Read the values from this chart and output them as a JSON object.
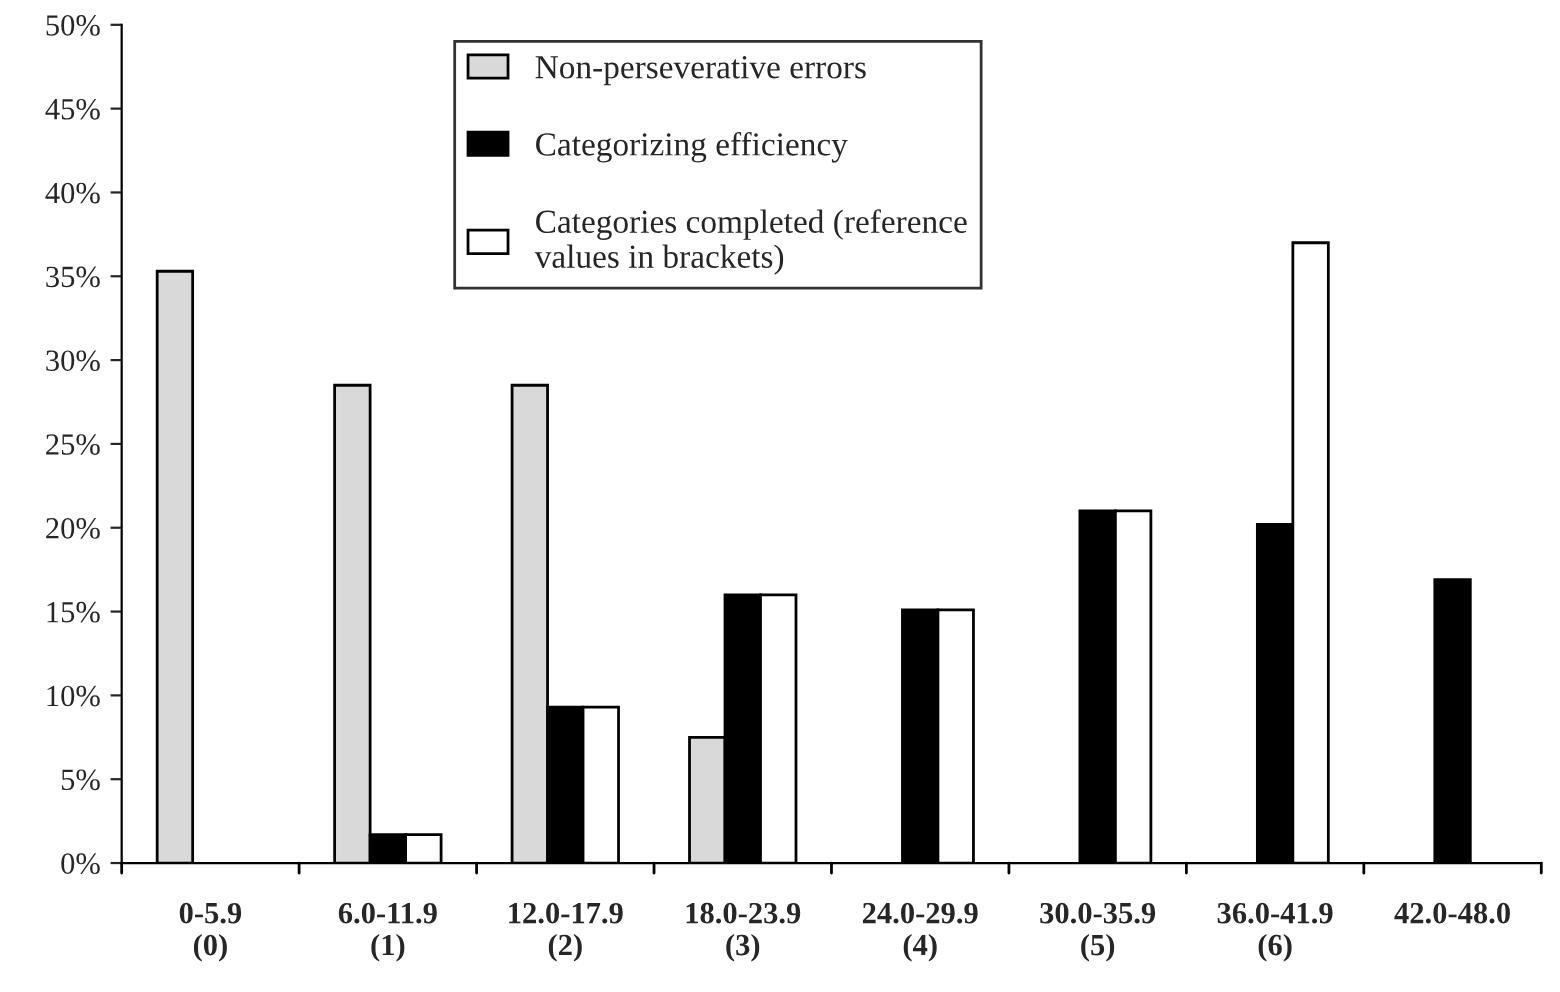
{
  "chart_data": {
    "type": "bar",
    "categories": [
      "0-5.9\n(0)",
      "6.0-11.9\n(1)",
      "12.0-17.9\n(2)",
      "18.0-23.9\n(3)",
      "24.0-29.9\n(4)",
      "30.0-35.9\n(5)",
      "36.0-41.9\n(6)",
      "42.0-48.0"
    ],
    "series": [
      {
        "name": "Non-perseverative errors",
        "color": "#d9d9d9",
        "values": [
          35.3,
          28.5,
          28.5,
          7.5,
          null,
          null,
          null,
          null
        ]
      },
      {
        "name": "Categorizing efficiency",
        "color": "#000000",
        "values": [
          null,
          1.7,
          9.3,
          16.0,
          15.1,
          21.0,
          20.2,
          16.9
        ]
      },
      {
        "name": "Categories completed (reference\nvalues in brackets)",
        "color": "#ffffff",
        "values": [
          null,
          1.7,
          9.3,
          16.0,
          15.1,
          21.0,
          37.0,
          null
        ]
      }
    ],
    "ylim": [
      0,
      50
    ],
    "yticks": [
      {
        "value": 0,
        "label": "0%"
      },
      {
        "value": 5,
        "label": "5%"
      },
      {
        "value": 10,
        "label": "10%"
      },
      {
        "value": 15,
        "label": "15%"
      },
      {
        "value": 20,
        "label": "20%"
      },
      {
        "value": 25,
        "label": "25%"
      },
      {
        "value": 30,
        "label": "30%"
      },
      {
        "value": 35,
        "label": "35%"
      },
      {
        "value": 40,
        "label": "40%"
      },
      {
        "value": 45,
        "label": "45%"
      },
      {
        "value": 50,
        "label": "50%"
      }
    ],
    "grid": false,
    "legend": "top"
  }
}
